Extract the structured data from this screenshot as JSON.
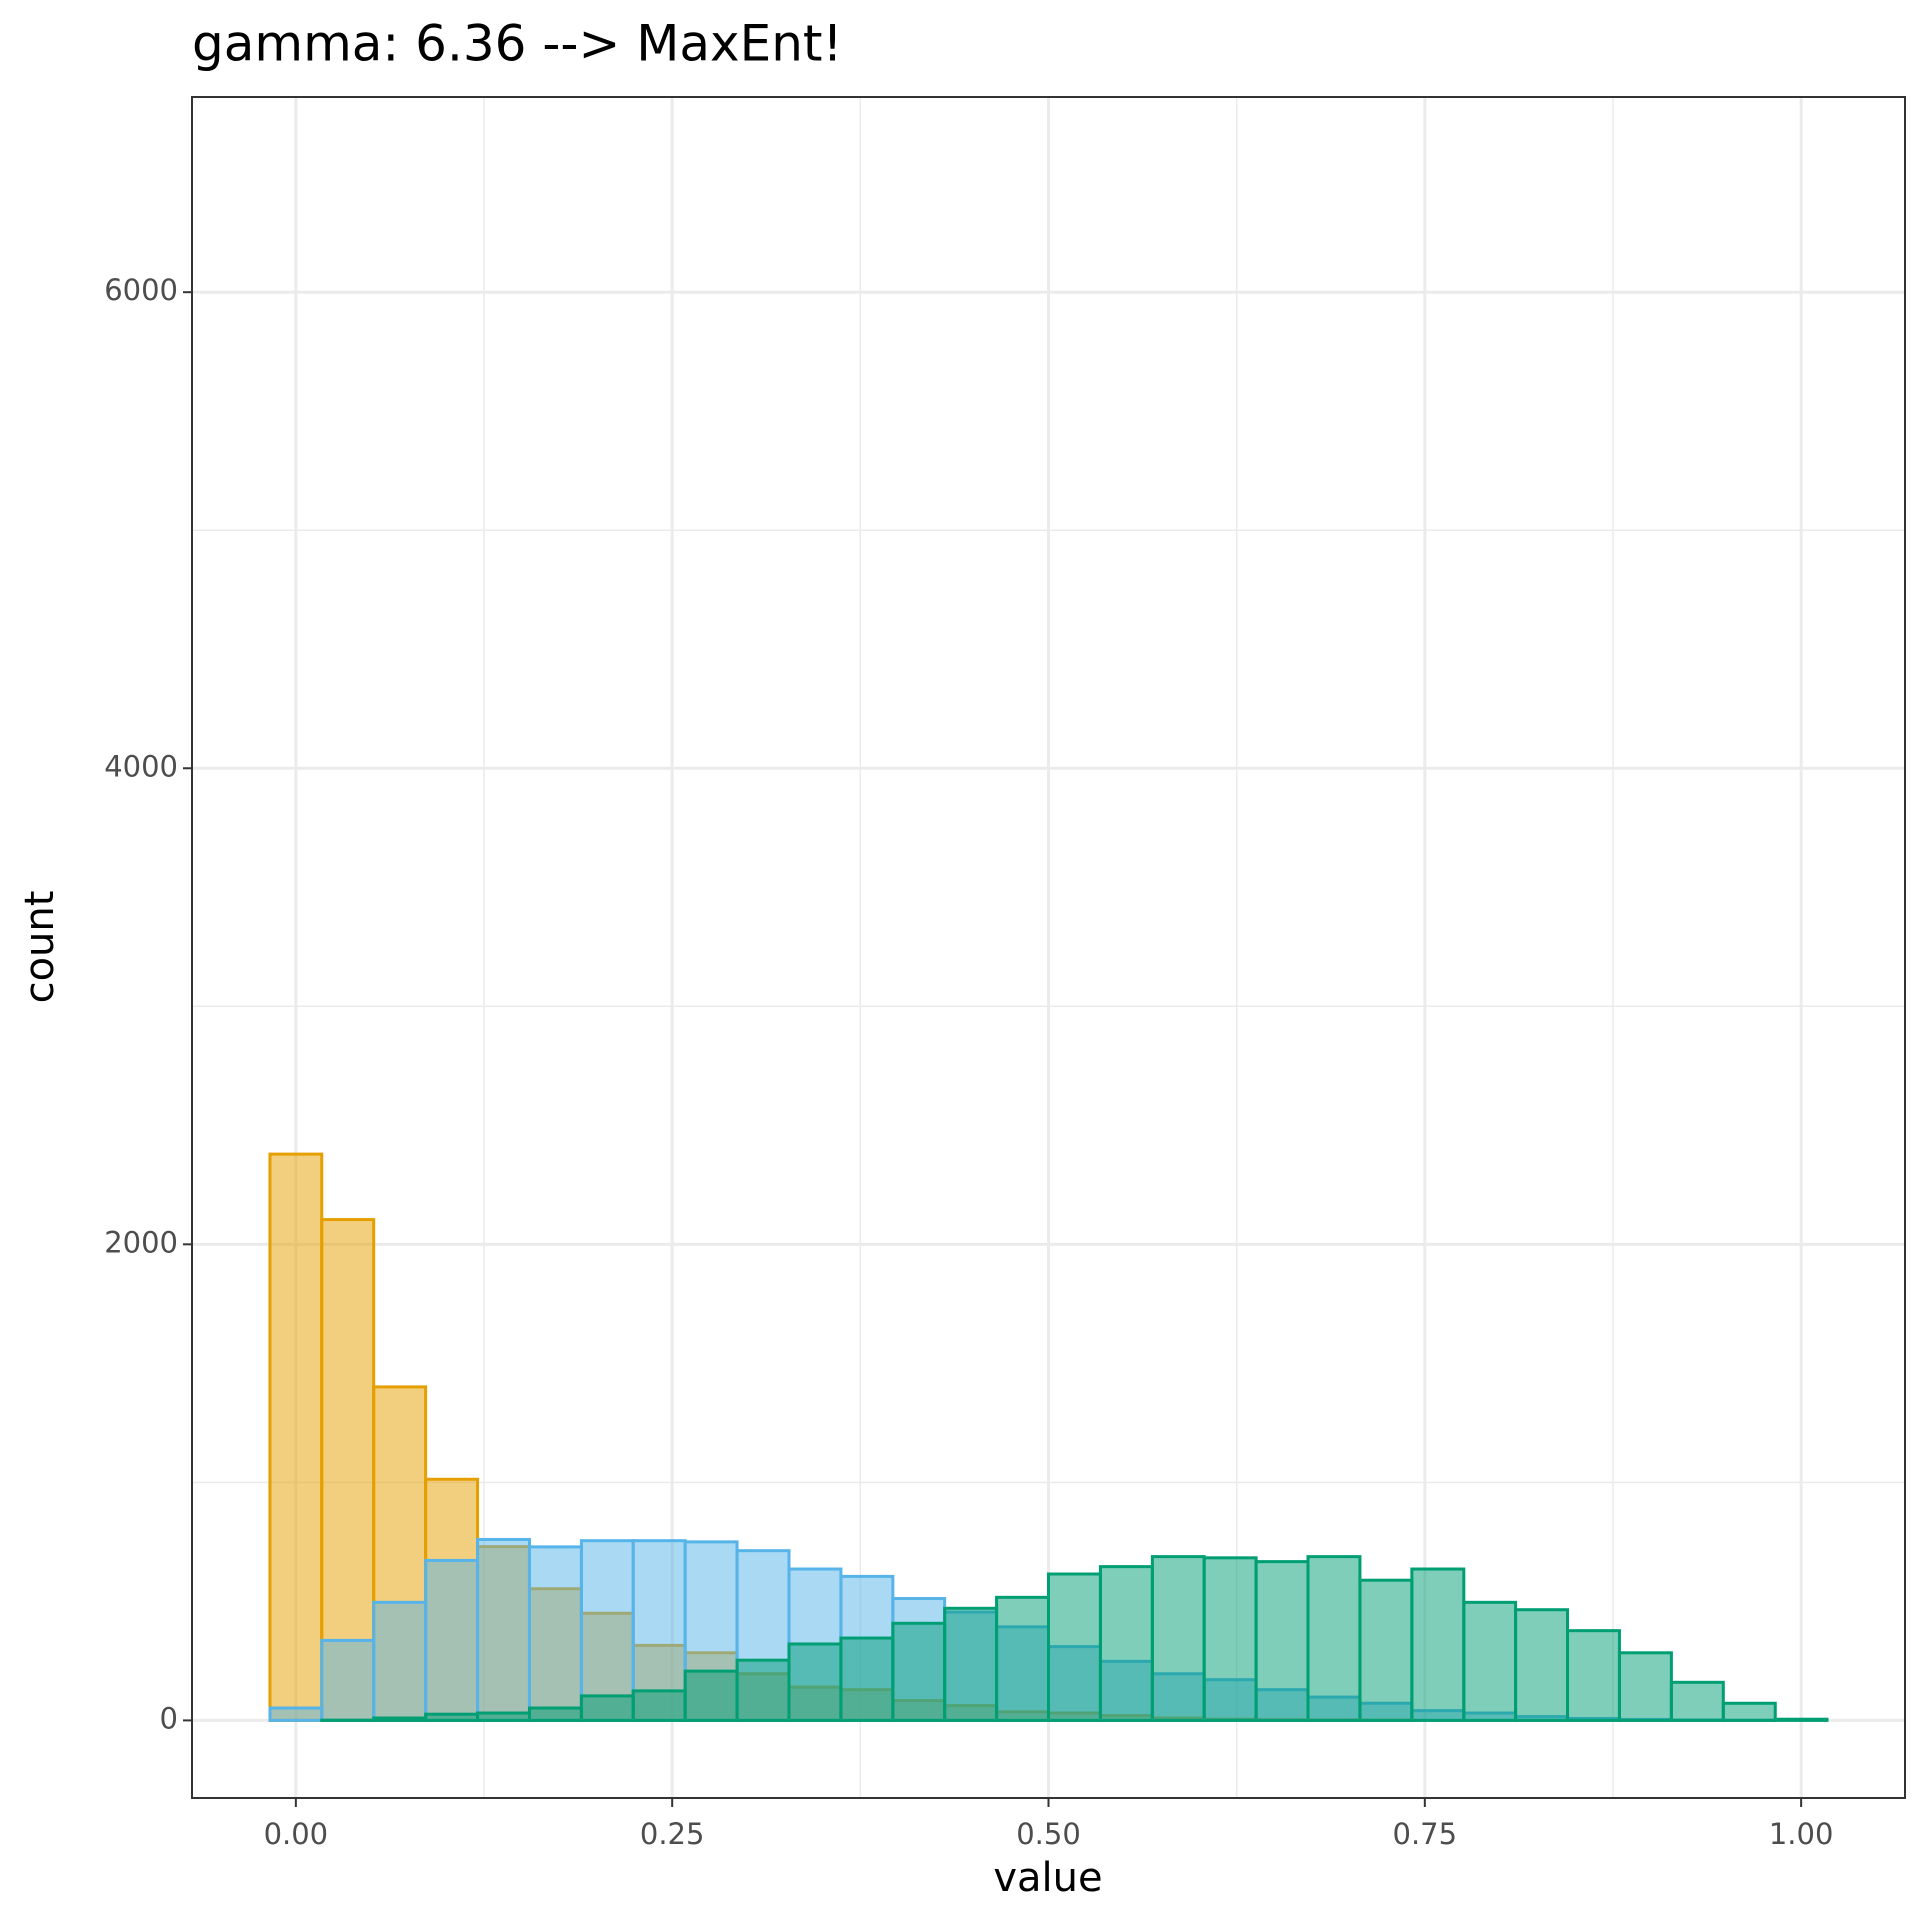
{
  "chart_data": {
    "type": "histogram",
    "title": "gamma: 6.36 --> MaxEnt!",
    "x_label": "value",
    "y_label": "count",
    "bins": [
      -0.0172,
      0.0172,
      0.0517,
      0.0862,
      0.1207,
      0.1552,
      0.1897,
      0.2241,
      0.2586,
      0.2931,
      0.3276,
      0.3621,
      0.3966,
      0.431,
      0.4655,
      0.5,
      0.5345,
      0.569,
      0.6034,
      0.6379,
      0.6724,
      0.7069,
      0.7414,
      0.7759,
      0.8103,
      0.8448,
      0.8793,
      0.9138,
      0.9483,
      0.9828,
      1.0172
    ],
    "series": [
      {
        "color": "#E69F00",
        "values": [
          2379,
          2104,
          1401,
          1013,
          730,
          553,
          450,
          315,
          284,
          196,
          140,
          129,
          83,
          62,
          36,
          31,
          20,
          10,
          5,
          3,
          2,
          1,
          0,
          0,
          0,
          0,
          0,
          0,
          0,
          0
        ]
      },
      {
        "color": "#56B4E9",
        "values": [
          52,
          336,
          496,
          672,
          760,
          729,
          755,
          755,
          750,
          713,
          636,
          605,
          512,
          455,
          393,
          310,
          248,
          196,
          171,
          129,
          98,
          72,
          41,
          31,
          16,
          8,
          4,
          2,
          1,
          0
        ]
      },
      {
        "color": "#009E73",
        "values": [
          0,
          1,
          10,
          26,
          31,
          52,
          103,
          124,
          207,
          253,
          321,
          346,
          408,
          471,
          517,
          615,
          646,
          688,
          683,
          667,
          688,
          589,
          636,
          496,
          465,
          377,
          284,
          160,
          72,
          5
        ]
      }
    ],
    "xlim": [
      -0.069,
      1.069
    ],
    "ylim": [
      -326,
      6820
    ],
    "xticks": [
      {
        "value": 0,
        "label": "0.00"
      },
      {
        "value": 0.25,
        "label": "0.25"
      },
      {
        "value": 0.5,
        "label": "0.50"
      },
      {
        "value": 0.75,
        "label": "0.75"
      },
      {
        "value": 1,
        "label": "1.00"
      }
    ],
    "yticks": [
      0,
      2000,
      4000,
      6000
    ],
    "grid": true
  }
}
